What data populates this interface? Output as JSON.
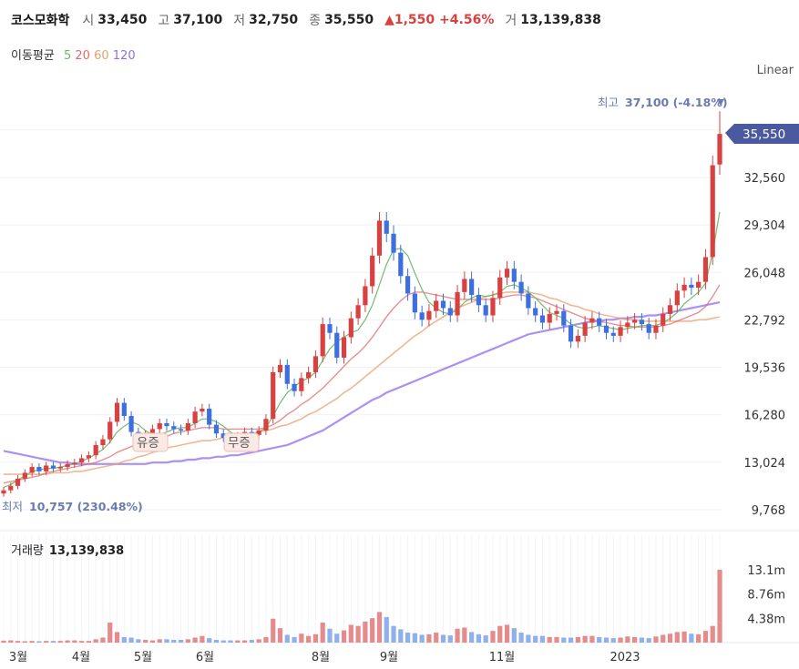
{
  "header": {
    "name": "코스모화학",
    "open_label": "시",
    "open": "33,450",
    "high_label": "고",
    "high": "37,100",
    "low_label": "저",
    "low": "32,750",
    "close_label": "종",
    "close": "35,550",
    "change_arrow": "▲",
    "change": "1,550",
    "change_pct": "+4.56%",
    "volume_label": "거",
    "volume": "13,139,838"
  },
  "moving_averages": {
    "label": "이동평균",
    "periods": [
      {
        "label": "5",
        "color": "#6cb86a"
      },
      {
        "label": "20",
        "color": "#e06b6b"
      },
      {
        "label": "60",
        "color": "#e8a070"
      },
      {
        "label": "120",
        "color": "#8f6cf0"
      }
    ]
  },
  "scale_label": "Linear",
  "annotations": {
    "high_prefix": "최고",
    "high_text": "37,100 (-4.18%)",
    "low_prefix": "최저",
    "low_text": "10,757 (230.48%)",
    "current_price": "35,550",
    "event_1": "유증",
    "event_2": "무증"
  },
  "volume_panel": {
    "label": "거래량",
    "value": "13,139,838"
  },
  "colors": {
    "up": "#d94040",
    "down": "#3d6fe0",
    "price_tag": "#4b5aa0",
    "annotation": "#6a7bb0"
  },
  "chart_data": {
    "type": "candlestick",
    "ylim": [
      9768,
      38000
    ],
    "y_ticks": [
      "32,560",
      "29,304",
      "26,048",
      "22,792",
      "19,536",
      "16,280",
      "13,024",
      "9,768"
    ],
    "x_ticks": [
      "3월",
      "4월",
      "5월",
      "6월",
      "8월",
      "9월",
      "11월",
      "2023"
    ],
    "close_series": [
      11100,
      11400,
      11900,
      12300,
      12700,
      12400,
      12800,
      12600,
      12700,
      12900,
      13000,
      13300,
      13500,
      14200,
      14600,
      15800,
      17100,
      16200,
      15100,
      14500,
      14900,
      15300,
      15700,
      15500,
      15300,
      15200,
      15700,
      16500,
      16700,
      15600,
      15000,
      14700,
      14600,
      14800,
      15100,
      14900,
      15200,
      16000,
      19200,
      19700,
      18400,
      17900,
      18800,
      19200,
      20300,
      22500,
      21900,
      20200,
      21600,
      22900,
      23800,
      25100,
      27200,
      29600,
      28700,
      27400,
      25800,
      24600,
      23300,
      22800,
      23400,
      24100,
      23600,
      23100,
      24700,
      25600,
      24500,
      23800,
      23100,
      24300,
      25700,
      26300,
      25400,
      24600,
      23600,
      23100,
      22600,
      23200,
      23400,
      22400,
      21300,
      21700,
      22600,
      22900,
      22400,
      21900,
      21700,
      22300,
      22600,
      22800,
      22500,
      21900,
      22400,
      23200,
      23800,
      24800,
      25200,
      25000,
      25400,
      27100,
      33400,
      35550
    ],
    "ma5": [
      11300,
      11500,
      11800,
      12100,
      12400,
      12500,
      12600,
      12600,
      12700,
      12800,
      12900,
      13100,
      13300,
      13600,
      13900,
      14400,
      15100,
      15500,
      15800,
      15600,
      15200,
      14900,
      14900,
      15100,
      15300,
      15400,
      15400,
      15700,
      16000,
      16000,
      15800,
      15500,
      15100,
      14800,
      14800,
      14900,
      15100,
      15400,
      16200,
      17100,
      17800,
      18200,
      18600,
      18800,
      19200,
      20000,
      20800,
      21300,
      21600,
      21900,
      22100,
      22800,
      23800,
      25200,
      26600,
      27600,
      27700,
      27200,
      26000,
      24900,
      24000,
      23600,
      23300,
      23200,
      23500,
      24000,
      24300,
      24500,
      24400,
      24500,
      24700,
      25100,
      25200,
      25000,
      24700,
      24300,
      23800,
      23300,
      23100,
      22900,
      22500,
      22300,
      22200,
      22300,
      22400,
      22300,
      22200,
      22100,
      22200,
      22300,
      22400,
      22400,
      22400,
      22600,
      22900,
      23300,
      23900,
      24300,
      24700,
      25300,
      27400,
      30200
    ],
    "ma20": [
      11600,
      11700,
      11800,
      11900,
      12000,
      12100,
      12300,
      12400,
      12500,
      12600,
      12700,
      12800,
      12900,
      13000,
      13200,
      13400,
      13700,
      13900,
      14100,
      14300,
      14400,
      14500,
      14600,
      14800,
      15000,
      15100,
      15200,
      15300,
      15400,
      15400,
      15400,
      15300,
      15300,
      15300,
      15300,
      15300,
      15300,
      15400,
      15600,
      15900,
      16300,
      16600,
      17000,
      17300,
      17700,
      18100,
      18600,
      19100,
      19600,
      20100,
      20500,
      21000,
      21600,
      22300,
      23000,
      23600,
      24100,
      24500,
      24700,
      24700,
      24600,
      24500,
      24400,
      24300,
      24200,
      24200,
      24200,
      24200,
      24200,
      24200,
      24300,
      24400,
      24500,
      24500,
      24400,
      24300,
      24100,
      23900,
      23700,
      23500,
      23300,
      23100,
      22900,
      22800,
      22700,
      22600,
      22500,
      22400,
      22400,
      22300,
      22300,
      22300,
      22300,
      22400,
      22500,
      22700,
      22900,
      23100,
      23300,
      23700,
      24400,
      25200
    ],
    "ma60": [
      12200,
      12200,
      12200,
      12200,
      12200,
      12200,
      12200,
      12300,
      12300,
      12300,
      12400,
      12400,
      12500,
      12600,
      12700,
      12800,
      12900,
      13100,
      13200,
      13400,
      13500,
      13700,
      13800,
      14000,
      14100,
      14200,
      14300,
      14400,
      14500,
      14500,
      14600,
      14700,
      14700,
      14800,
      14900,
      15000,
      15100,
      15200,
      15300,
      15500,
      15600,
      15800,
      16000,
      16300,
      16500,
      16800,
      17100,
      17400,
      17800,
      18100,
      18500,
      18900,
      19300,
      19700,
      20100,
      20500,
      20900,
      21300,
      21700,
      22000,
      22400,
      22700,
      23000,
      23300,
      23600,
      23800,
      24000,
      24200,
      24400,
      24500,
      24600,
      24700,
      24700,
      24700,
      24700,
      24600,
      24500,
      24300,
      24200,
      24000,
      23800,
      23700,
      23500,
      23400,
      23200,
      23100,
      23000,
      22900,
      22800,
      22800,
      22700,
      22700,
      22700,
      22700,
      22700,
      22700,
      22700,
      22700,
      22800,
      22800,
      22900,
      23000
    ],
    "ma120": [
      13800,
      13700,
      13600,
      13500,
      13400,
      13300,
      13200,
      13100,
      13000,
      13000,
      12900,
      12900,
      12900,
      12900,
      12900,
      12900,
      12900,
      12900,
      12900,
      12900,
      12900,
      13000,
      13000,
      13000,
      13100,
      13100,
      13200,
      13200,
      13300,
      13300,
      13400,
      13400,
      13500,
      13500,
      13600,
      13700,
      13800,
      13900,
      14000,
      14100,
      14200,
      14400,
      14600,
      14800,
      15000,
      15200,
      15500,
      15800,
      16100,
      16400,
      16700,
      17000,
      17300,
      17500,
      17800,
      18000,
      18200,
      18400,
      18600,
      18800,
      19000,
      19200,
      19400,
      19600,
      19800,
      20000,
      20200,
      20400,
      20600,
      20800,
      21000,
      21200,
      21400,
      21600,
      21800,
      21900,
      22000,
      22100,
      22200,
      22300,
      22400,
      22500,
      22600,
      22700,
      22700,
      22800,
      22800,
      22900,
      22900,
      23000,
      23000,
      23100,
      23100,
      23200,
      23300,
      23400,
      23500,
      23600,
      23700,
      23800,
      23900,
      24000
    ],
    "volume_ticks": [
      "13.1m",
      "8.76m",
      "4.38m"
    ],
    "volume_max": 13139838,
    "volume": [
      0.35,
      0.4,
      0.3,
      0.25,
      0.3,
      0.25,
      0.3,
      0.3,
      0.3,
      0.4,
      0.4,
      0.3,
      0.3,
      0.6,
      0.9,
      3.6,
      1.9,
      1.0,
      0.9,
      0.6,
      0.5,
      0.4,
      0.6,
      0.6,
      0.5,
      0.5,
      0.6,
      0.9,
      1.2,
      0.8,
      0.5,
      0.4,
      0.4,
      0.4,
      0.4,
      0.5,
      0.6,
      1.0,
      4.3,
      2.6,
      1.4,
      1.0,
      1.6,
      1.2,
      1.5,
      3.6,
      2.5,
      1.6,
      2.2,
      3.2,
      3.0,
      3.8,
      4.4,
      5.5,
      4.6,
      3.0,
      2.4,
      1.8,
      1.7,
      1.4,
      1.5,
      1.8,
      1.4,
      1.3,
      2.5,
      2.7,
      1.9,
      1.5,
      1.3,
      2.1,
      3.0,
      3.2,
      2.6,
      1.8,
      1.4,
      1.2,
      1.2,
      1.0,
      1.0,
      0.9,
      0.9,
      1.0,
      1.2,
      1.2,
      1.0,
      0.9,
      0.8,
      0.9,
      1.1,
      1.0,
      0.9,
      0.8,
      1.1,
      1.4,
      1.6,
      1.9,
      2.0,
      1.6,
      1.5,
      2.1,
      3.0,
      13.1
    ]
  }
}
